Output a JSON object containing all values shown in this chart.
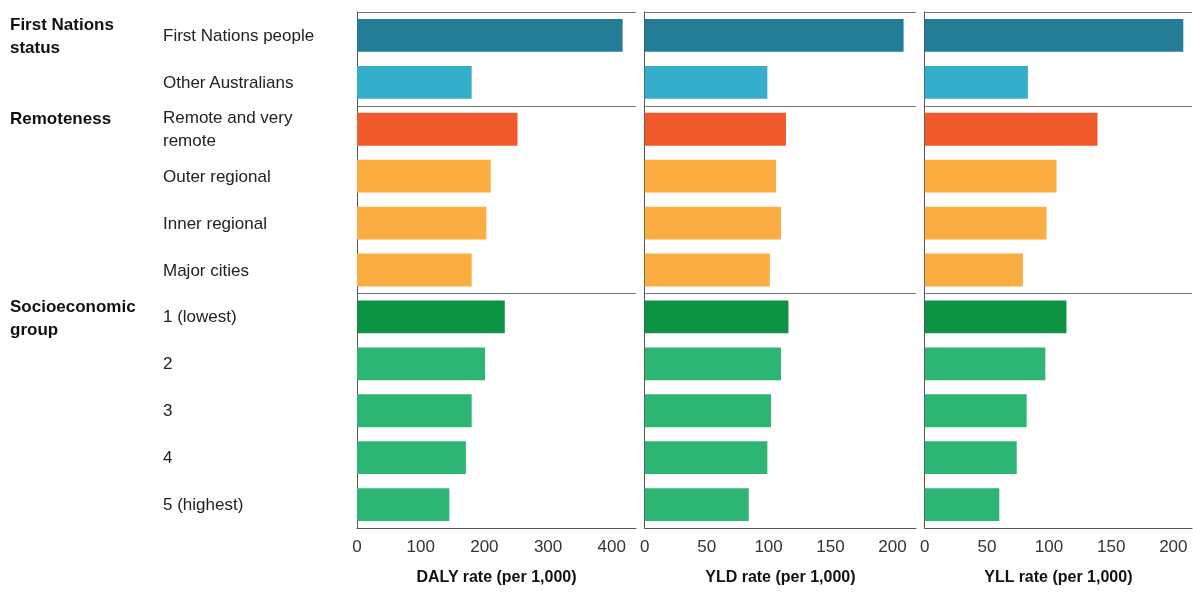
{
  "chart_data": [
    {
      "type": "bar",
      "orientation": "horizontal",
      "xlabel": "DALY rate (per 1,000)",
      "categories": [
        "First Nations people",
        "Other Australians",
        "Remote and very remote",
        "Outer regional",
        "Inner regional",
        "Major cities",
        "1 (lowest)",
        "2",
        "3",
        "4",
        "5 (highest)"
      ],
      "values": [
        417,
        180,
        252,
        210,
        203,
        180,
        232,
        201,
        180,
        171,
        145
      ],
      "colors": [
        "#237d96",
        "#35aecb",
        "#f05a2a",
        "#fbad41",
        "#fbad41",
        "#fbad41",
        "#0c9444",
        "#2db673",
        "#2db673",
        "#2db673",
        "#2db673"
      ],
      "xlim": [
        0,
        438
      ],
      "xticks": [
        0,
        100,
        200,
        300,
        400
      ],
      "grid": false,
      "annotations": [
        "First Nations status",
        "Remoteness",
        "Socioeconomic group"
      ]
    },
    {
      "type": "bar",
      "orientation": "horizontal",
      "xlabel": "YLD rate (per 1,000)",
      "tick_labels": "x",
      "categories": [
        "First Nations people",
        "Other Australians",
        "Remote and very remote",
        "Outer regional",
        "Inner regional",
        "Major cities",
        "1 (lowest)",
        "2",
        "3",
        "4",
        "5 (highest)"
      ],
      "values": [
        209,
        99,
        114,
        106,
        110,
        101,
        116,
        110,
        102,
        99,
        84
      ],
      "colors": [
        "#237d96",
        "#35aecb",
        "#f05a2a",
        "#fbad41",
        "#fbad41",
        "#fbad41",
        "#0c9444",
        "#2db673",
        "#2db673",
        "#2db673",
        "#2db673"
      ],
      "xlim": [
        0,
        219
      ],
      "xticks": [
        0,
        50,
        100,
        150,
        200
      ],
      "grid": false
    },
    {
      "type": "bar",
      "orientation": "horizontal",
      "xlabel": "YLL rate (per 1,000)",
      "tick_labels": "x",
      "categories": [
        "First Nations people",
        "Other Australians",
        "Remote and very remote",
        "Outer regional",
        "Inner regional",
        "Major cities",
        "1 (lowest)",
        "2",
        "3",
        "4",
        "5 (highest)"
      ],
      "values": [
        208,
        83,
        139,
        106,
        98,
        79,
        114,
        97,
        82,
        74,
        60
      ],
      "colors": [
        "#237d96",
        "#35aecb",
        "#f05a2a",
        "#fbad41",
        "#fbad41",
        "#fbad41",
        "#0c9444",
        "#2db673",
        "#2db673",
        "#2db673",
        "#2db673"
      ],
      "xlim": [
        0,
        215
      ],
      "xticks": [
        0,
        50,
        100,
        150,
        200
      ],
      "grid": false
    }
  ]
}
